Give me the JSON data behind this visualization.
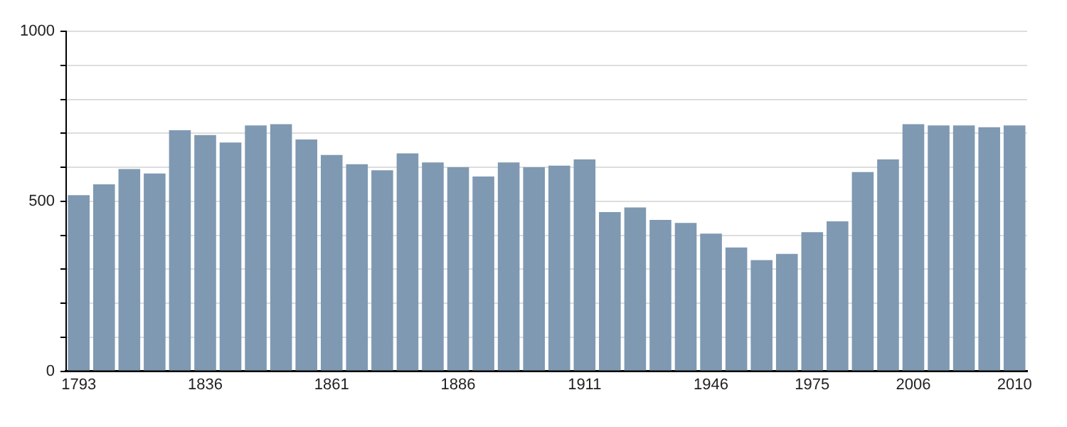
{
  "chart_data": {
    "type": "bar",
    "categories": [
      "1793",
      null,
      null,
      null,
      null,
      "1836",
      null,
      null,
      null,
      null,
      "1861",
      null,
      null,
      null,
      null,
      "1886",
      null,
      null,
      null,
      null,
      "1911",
      null,
      null,
      null,
      null,
      "1946",
      null,
      null,
      null,
      "1975",
      null,
      null,
      null,
      "2006",
      null,
      null,
      null,
      "2010"
    ],
    "values": [
      518,
      550,
      595,
      582,
      709,
      695,
      673,
      723,
      727,
      682,
      636,
      609,
      591,
      641,
      614,
      600,
      573,
      614,
      600,
      605,
      623,
      468,
      482,
      445,
      436,
      405,
      364,
      327,
      345,
      409,
      441,
      586,
      623,
      727,
      723,
      723,
      718,
      723
    ],
    "color": "#7f99b2",
    "ylim": [
      0,
      1000
    ],
    "yticks": [
      0,
      {
        "value": 100,
        "label": null
      },
      {
        "value": 200,
        "label": null
      },
      {
        "value": 300,
        "label": null
      },
      {
        "value": 400,
        "label": null
      },
      500,
      {
        "value": 600,
        "label": null
      },
      {
        "value": 700,
        "label": null
      },
      {
        "value": 800,
        "label": null
      },
      {
        "value": 900,
        "label": null
      },
      1000
    ],
    "grid": "y"
  }
}
